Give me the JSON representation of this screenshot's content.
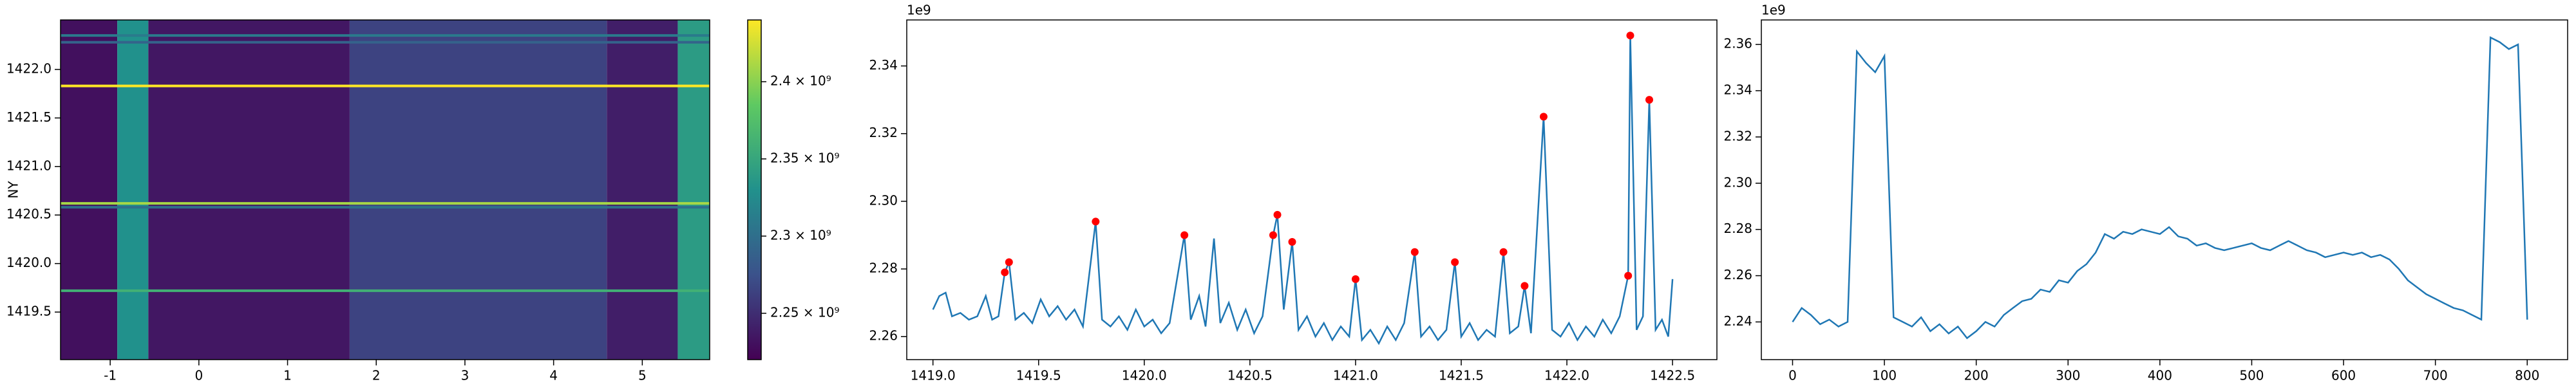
{
  "chart_data": [
    {
      "type": "heatmap",
      "y_label": "NY",
      "colormap": "viridis",
      "x_edges": [
        -1.56,
        -0.92,
        -0.57,
        1.7,
        4.6,
        5.4,
        5.76
      ],
      "column_values": [
        2230000000,
        2330000000,
        2235000000,
        2265000000,
        2240000000,
        2340000000
      ],
      "row_y": [
        1422.35,
        1422.28,
        1421.83,
        1420.62,
        1420.58,
        1419.72
      ],
      "row_values": [
        2310000000,
        2290000000,
        2440000000,
        2410000000,
        2300000000,
        2360000000
      ],
      "xlim": [
        -1.56,
        5.76
      ],
      "ylim": [
        1419.01,
        1422.51
      ],
      "xticks": [
        -1,
        0,
        1,
        2,
        3,
        4,
        5
      ],
      "yticks": [
        {
          "value": 1419.5,
          "label": "1419.5"
        },
        {
          "value": 1420,
          "label": "1420.0"
        },
        {
          "value": 1420.5,
          "label": "1420.5"
        },
        {
          "value": 1421,
          "label": "1421.0"
        },
        {
          "value": 1421.5,
          "label": "1421.5"
        },
        {
          "value": 1422,
          "label": "1422.0"
        }
      ],
      "clim": [
        2220000000,
        2440000000
      ],
      "cticks": [
        {
          "value": 2250000000,
          "label": "2.25 × 10⁹"
        },
        {
          "value": 2300000000,
          "label": "2.3 × 10⁹"
        },
        {
          "value": 2350000000,
          "label": "2.35 × 10⁹"
        },
        {
          "value": 2400000000,
          "label": "2.4 × 10⁹"
        }
      ]
    },
    {
      "type": "line",
      "offset_text": "1e9",
      "xlim": [
        1418.876,
        1422.71
      ],
      "ylim": [
        2.2532,
        2.3536
      ],
      "xticks": [
        {
          "value": 1419,
          "label": "1419.0"
        },
        {
          "value": 1419.5,
          "label": "1419.5"
        },
        {
          "value": 1420,
          "label": "1420.0"
        },
        {
          "value": 1420.5,
          "label": "1420.5"
        },
        {
          "value": 1421,
          "label": "1421.0"
        },
        {
          "value": 1421.5,
          "label": "1421.5"
        },
        {
          "value": 1422,
          "label": "1422.0"
        },
        {
          "value": 1422.5,
          "label": "1422.5"
        }
      ],
      "yticks": [
        2.26,
        2.28,
        {
          "value": 2.3,
          "label": "2.30"
        },
        2.32,
        2.34
      ],
      "series": [
        {
          "type": "line",
          "color": "#1f77b4",
          "x": [
            1419.0,
            1419.03,
            1419.06,
            1419.09,
            1419.13,
            1419.17,
            1419.21,
            1419.25,
            1419.28,
            1419.31,
            1419.34,
            1419.36,
            1419.39,
            1419.43,
            1419.47,
            1419.51,
            1419.55,
            1419.59,
            1419.63,
            1419.67,
            1419.71,
            1419.77,
            1419.8,
            1419.84,
            1419.88,
            1419.92,
            1419.96,
            1420.0,
            1420.04,
            1420.08,
            1420.12,
            1420.19,
            1420.22,
            1420.26,
            1420.29,
            1420.33,
            1420.36,
            1420.4,
            1420.44,
            1420.48,
            1420.52,
            1420.56,
            1420.61,
            1420.63,
            1420.66,
            1420.7,
            1420.73,
            1420.77,
            1420.81,
            1420.85,
            1420.89,
            1420.93,
            1420.97,
            1421.0,
            1421.03,
            1421.07,
            1421.11,
            1421.15,
            1421.19,
            1421.23,
            1421.28,
            1421.31,
            1421.35,
            1421.39,
            1421.43,
            1421.47,
            1421.5,
            1421.54,
            1421.58,
            1421.62,
            1421.66,
            1421.7,
            1421.73,
            1421.77,
            1421.8,
            1421.83,
            1421.89,
            1421.93,
            1421.97,
            1422.01,
            1422.05,
            1422.09,
            1422.13,
            1422.17,
            1422.21,
            1422.25,
            1422.29,
            1422.3,
            1422.33,
            1422.36,
            1422.39,
            1422.42,
            1422.45,
            1422.48,
            1422.5
          ],
          "values": [
            2.268,
            2.272,
            2.273,
            2.266,
            2.267,
            2.265,
            2.266,
            2.272,
            2.265,
            2.266,
            2.279,
            2.282,
            2.265,
            2.267,
            2.264,
            2.271,
            2.266,
            2.269,
            2.265,
            2.268,
            2.263,
            2.294,
            2.265,
            2.263,
            2.266,
            2.262,
            2.268,
            2.263,
            2.265,
            2.261,
            2.264,
            2.29,
            2.265,
            2.272,
            2.263,
            2.289,
            2.264,
            2.27,
            2.262,
            2.268,
            2.261,
            2.266,
            2.29,
            2.296,
            2.268,
            2.288,
            2.262,
            2.266,
            2.26,
            2.264,
            2.259,
            2.263,
            2.26,
            2.277,
            2.259,
            2.262,
            2.258,
            2.263,
            2.259,
            2.264,
            2.285,
            2.26,
            2.263,
            2.259,
            2.262,
            2.282,
            2.26,
            2.264,
            2.259,
            2.262,
            2.26,
            2.285,
            2.261,
            2.263,
            2.275,
            2.261,
            2.325,
            2.262,
            2.26,
            2.264,
            2.259,
            2.263,
            2.26,
            2.265,
            2.261,
            2.266,
            2.278,
            2.349,
            2.262,
            2.266,
            2.33,
            2.262,
            2.265,
            2.26,
            2.277
          ]
        },
        {
          "type": "scatter",
          "color": "red",
          "x": [
            1419.34,
            1419.36,
            1419.77,
            1420.19,
            1420.61,
            1420.63,
            1420.7,
            1421.0,
            1421.28,
            1421.47,
            1421.7,
            1421.8,
            1421.89,
            1422.29,
            1422.3,
            1422.39
          ],
          "values": [
            2.279,
            2.282,
            2.294,
            2.29,
            2.29,
            2.296,
            2.288,
            2.277,
            2.285,
            2.282,
            2.285,
            2.275,
            2.325,
            2.278,
            2.349,
            2.33
          ]
        }
      ]
    },
    {
      "type": "line",
      "offset_text": "1e9",
      "xlim": [
        -34,
        844
      ],
      "ylim": [
        2.2237,
        2.3706
      ],
      "xticks": [
        0,
        100,
        200,
        300,
        400,
        500,
        600,
        700,
        800
      ],
      "yticks": [
        2.24,
        2.26,
        2.28,
        {
          "value": 2.3,
          "label": "2.30"
        },
        2.32,
        2.34,
        2.36
      ],
      "series": [
        {
          "type": "line",
          "color": "#1f77b4",
          "x": [
            0,
            10,
            20,
            30,
            40,
            50,
            60,
            70,
            80,
            90,
            100,
            110,
            120,
            130,
            140,
            150,
            160,
            170,
            180,
            190,
            200,
            210,
            220,
            230,
            240,
            250,
            260,
            270,
            280,
            290,
            300,
            310,
            320,
            330,
            340,
            350,
            360,
            370,
            380,
            390,
            400,
            410,
            420,
            430,
            440,
            450,
            460,
            470,
            480,
            490,
            500,
            510,
            520,
            530,
            540,
            550,
            560,
            570,
            580,
            590,
            600,
            610,
            620,
            630,
            640,
            650,
            660,
            670,
            680,
            690,
            700,
            710,
            720,
            730,
            740,
            750,
            760,
            770,
            780,
            790,
            800
          ],
          "values": [
            2.24,
            2.246,
            2.243,
            2.239,
            2.241,
            2.238,
            2.24,
            2.357,
            2.352,
            2.348,
            2.355,
            2.242,
            2.24,
            2.238,
            2.242,
            2.236,
            2.239,
            2.235,
            2.238,
            2.233,
            2.236,
            2.24,
            2.238,
            2.243,
            2.246,
            2.249,
            2.25,
            2.254,
            2.253,
            2.258,
            2.257,
            2.262,
            2.265,
            2.27,
            2.278,
            2.276,
            2.279,
            2.278,
            2.28,
            2.279,
            2.278,
            2.281,
            2.277,
            2.276,
            2.273,
            2.274,
            2.272,
            2.271,
            2.272,
            2.273,
            2.274,
            2.272,
            2.271,
            2.273,
            2.275,
            2.273,
            2.271,
            2.27,
            2.268,
            2.269,
            2.27,
            2.269,
            2.27,
            2.268,
            2.269,
            2.267,
            2.263,
            2.258,
            2.255,
            2.252,
            2.25,
            2.248,
            2.246,
            2.245,
            2.243,
            2.241,
            2.363,
            2.361,
            2.358,
            2.36,
            2.241
          ]
        }
      ]
    }
  ]
}
